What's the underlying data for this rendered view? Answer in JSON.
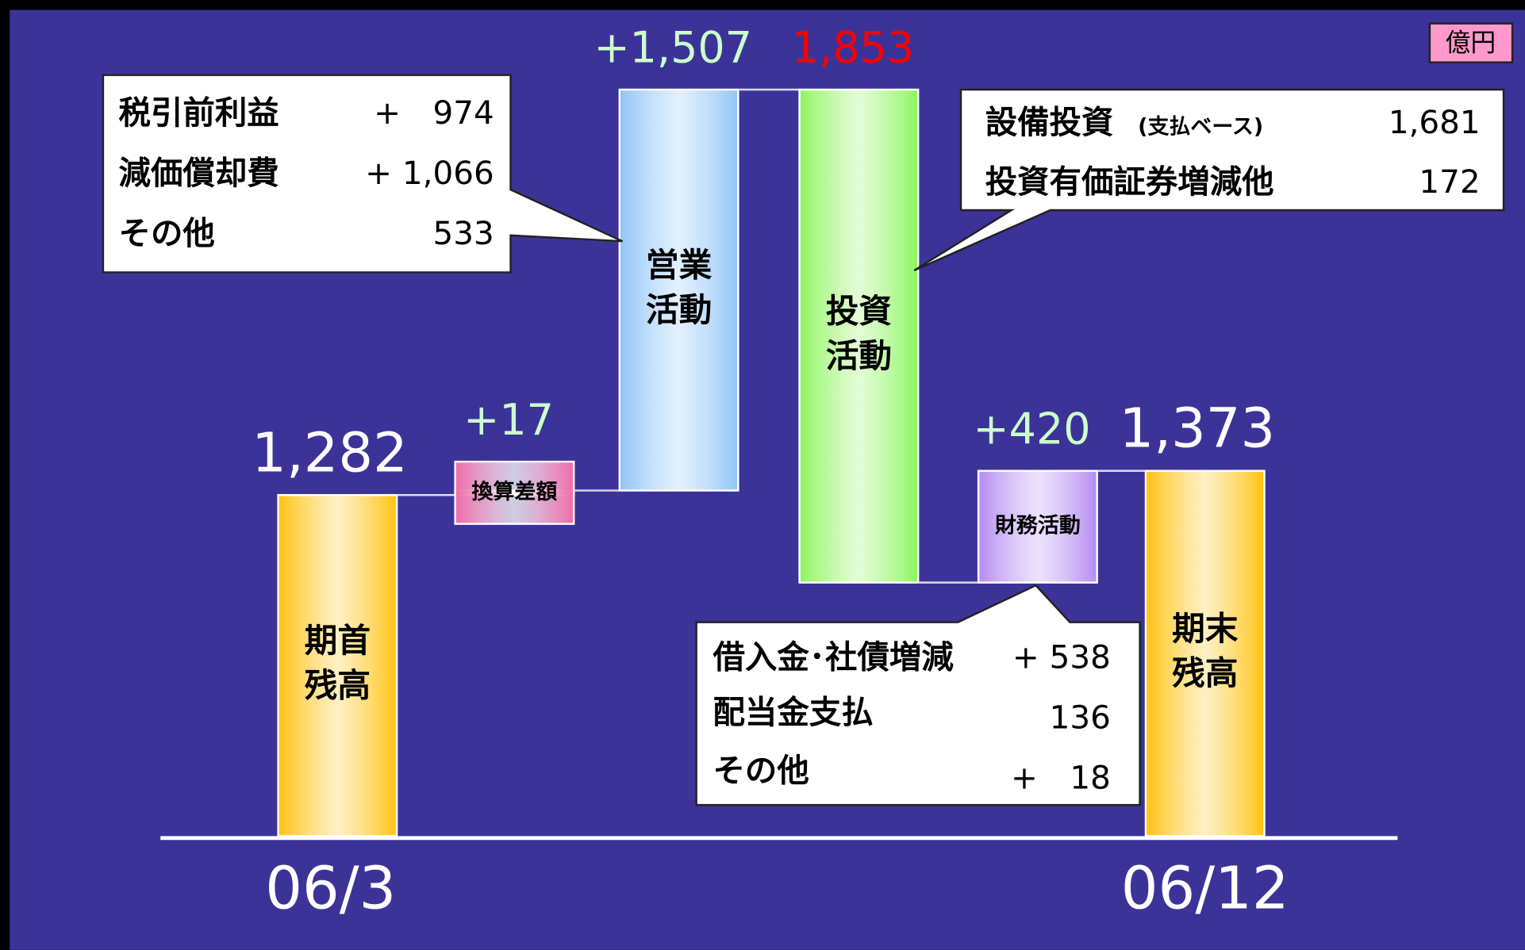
{
  "chart_data": {
    "type": "waterfall",
    "unit": "億円",
    "categories": [
      [
        "期首",
        "残高"
      ],
      [
        "換算差額"
      ],
      [
        "営業",
        "活動"
      ],
      [
        "投資",
        "活動"
      ],
      [
        "財務活動"
      ],
      [
        "期末",
        "残高"
      ]
    ],
    "measure": [
      "absolute",
      "relative",
      "relative",
      "relative",
      "relative",
      "absolute"
    ],
    "values": [
      1282,
      17,
      1507,
      -1853,
      420,
      1373
    ],
    "value_labels": [
      "1,282",
      "+17",
      "+1,507",
      "1,853",
      "+420",
      "1,373"
    ],
    "colors": [
      "#ffc20e",
      "#f06aa8",
      "#8fc4f8",
      "#8cf55c",
      "#b58cf0",
      "#ffc20e"
    ],
    "label_colors": {
      "absolute": "#ffffff",
      "increase": "#ccffcc",
      "decrease": "#ff0000"
    },
    "period_labels": {
      "start": "06/3",
      "end": "06/12"
    },
    "callouts": [
      {
        "rows": [
          [
            "税引前利益",
            "+　974"
          ],
          [
            "減価償却費",
            "+ 1,066"
          ],
          [
            "その他",
            "533"
          ]
        ]
      },
      {
        "rows": [
          [
            "設備投資",
            "1,681"
          ],
          [
            "投資有価証券増減他",
            "172"
          ]
        ],
        "note": "(支払ベース)"
      },
      {
        "rows": [
          [
            "借入金･社債増減",
            "+ 538"
          ],
          [
            "配当金支払",
            "136"
          ],
          [
            "その他",
            "+　18"
          ]
        ]
      }
    ]
  }
}
